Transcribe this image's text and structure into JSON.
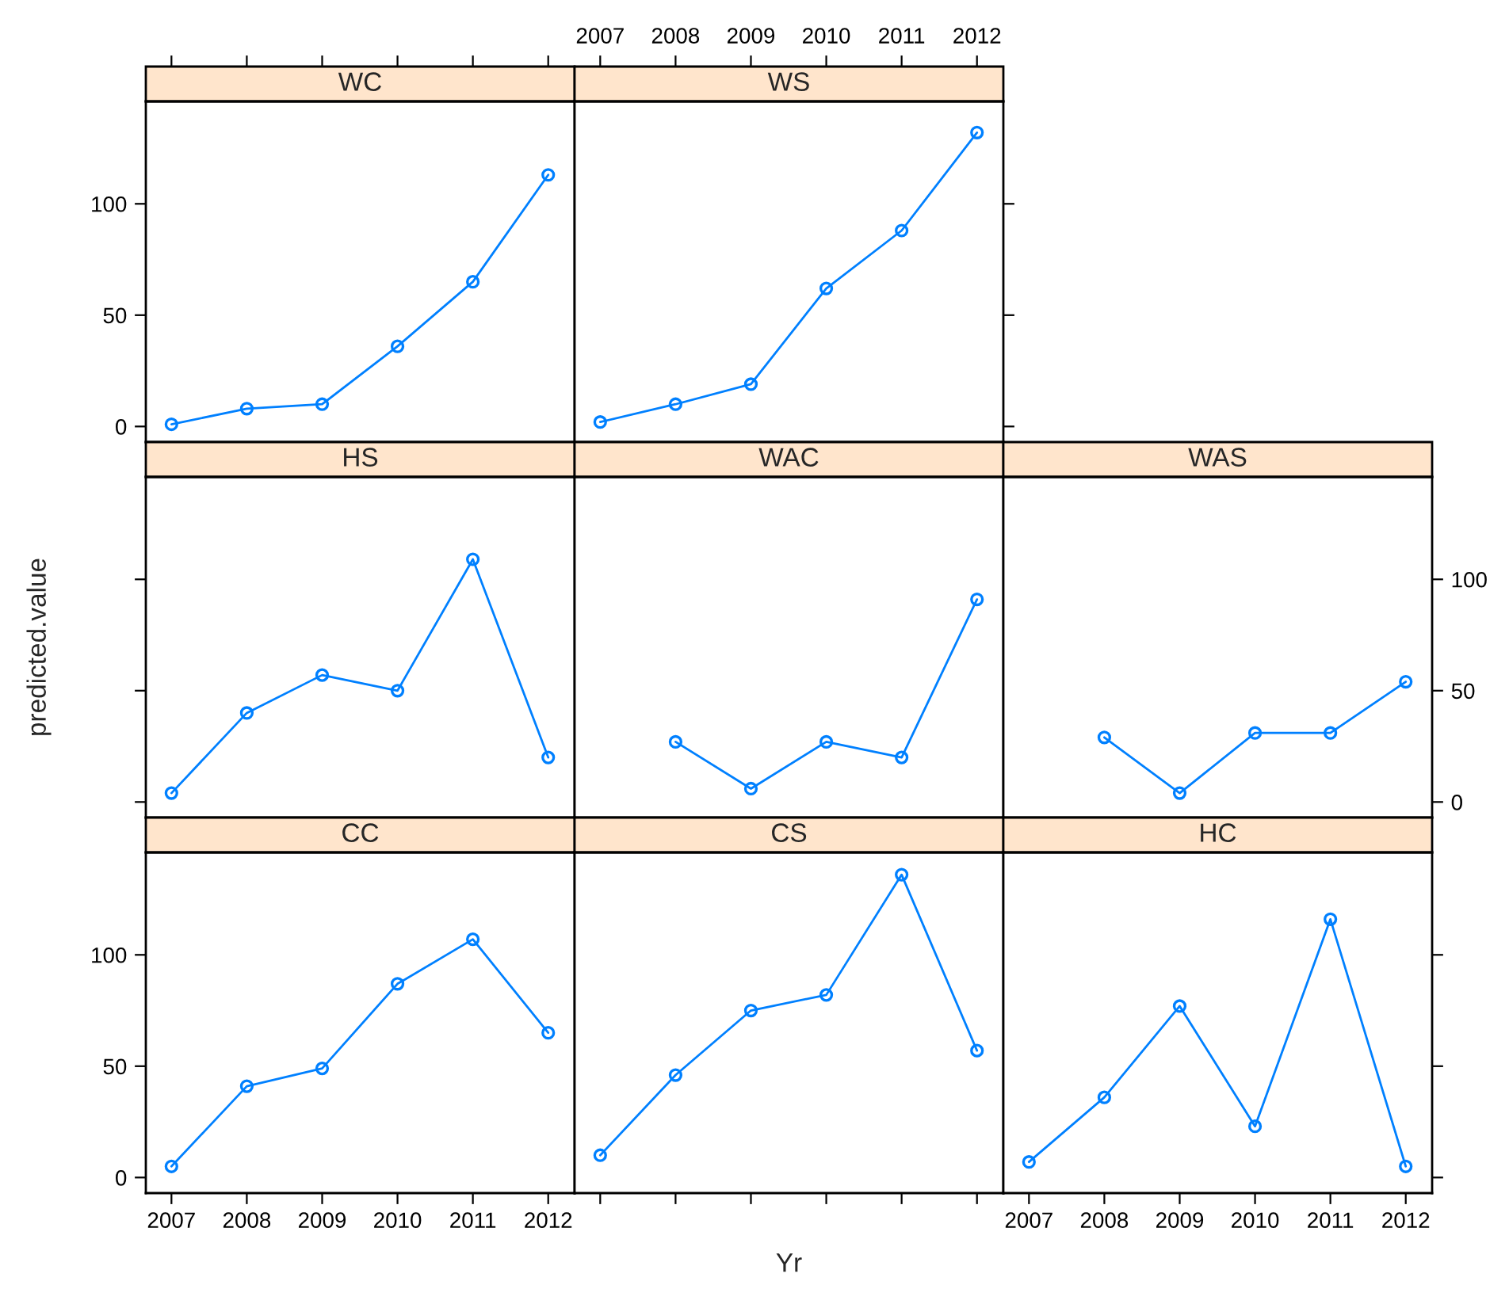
{
  "chart_data": [
    {
      "type": "line",
      "title": "WC",
      "x": [
        2007,
        2008,
        2009,
        2010,
        2011,
        2012
      ],
      "series": [
        {
          "color": "#0080ff",
          "values": [
            1,
            8,
            10,
            36,
            65,
            113
          ]
        }
      ],
      "xlim": [
        2006.66,
        2012.35
      ],
      "xticks": [
        2007,
        2008,
        2009,
        2010,
        2011,
        2012
      ],
      "ylim": [
        -7,
        146
      ],
      "yticks": [
        0,
        50,
        100
      ],
      "marker": "circle",
      "grid": false,
      "tick_labels": "y"
    },
    {
      "type": "line",
      "title": "WS",
      "x": [
        2007,
        2008,
        2009,
        2010,
        2011,
        2012
      ],
      "series": [
        {
          "color": "#0080ff",
          "values": [
            2,
            10,
            19,
            62,
            88,
            132
          ]
        }
      ],
      "xlim": [
        2006.66,
        2012.35
      ],
      "xticks": [
        2007,
        2008,
        2009,
        2010,
        2011,
        2012
      ],
      "ylim": [
        -7,
        146
      ],
      "yticks": [
        0,
        50,
        100
      ],
      "marker": "circle",
      "grid": false,
      "tick_labels": "x"
    },
    {
      "type": "line",
      "title": "HS",
      "ylabel": "predicted.value",
      "x": [
        2007,
        2008,
        2009,
        2010,
        2011,
        2012
      ],
      "series": [
        {
          "color": "#0080ff",
          "values": [
            4,
            40,
            57,
            50,
            109,
            20
          ]
        }
      ],
      "xlim": [
        2006.66,
        2012.35
      ],
      "xticks": [
        2007,
        2008,
        2009,
        2010,
        2011,
        2012
      ],
      "ylim": [
        -7,
        146
      ],
      "yticks": [
        0,
        50,
        100
      ],
      "marker": "circle",
      "grid": false,
      "tick_labels": false
    },
    {
      "type": "line",
      "title": "WAC",
      "series": [
        {
          "color": "#0080ff",
          "x": [
            2008,
            2009,
            2010,
            2011,
            2012
          ],
          "values": [
            27,
            6,
            27,
            20,
            91
          ]
        }
      ],
      "xlim": [
        2006.66,
        2012.35
      ],
      "xticks": [
        2007,
        2008,
        2009,
        2010,
        2011,
        2012
      ],
      "ylim": [
        -7,
        146
      ],
      "yticks": [
        0,
        50,
        100
      ],
      "marker": "circle",
      "grid": false,
      "tick_labels": false
    },
    {
      "type": "line",
      "title": "WAS",
      "series": [
        {
          "color": "#0080ff",
          "x": [
            2008,
            2009,
            2010,
            2011,
            2012
          ],
          "values": [
            29,
            4,
            31,
            31,
            54
          ]
        }
      ],
      "xlim": [
        2006.66,
        2012.35
      ],
      "xticks": [
        2007,
        2008,
        2009,
        2010,
        2011,
        2012
      ],
      "ylim": [
        -7,
        146
      ],
      "yticks": [
        0,
        50,
        100
      ],
      "marker": "circle",
      "grid": false,
      "tick_labels": "y"
    },
    {
      "type": "line",
      "title": "CC",
      "x": [
        2007,
        2008,
        2009,
        2010,
        2011,
        2012
      ],
      "series": [
        {
          "color": "#0080ff",
          "values": [
            5,
            41,
            49,
            87,
            107,
            65
          ]
        }
      ],
      "xlim": [
        2006.66,
        2012.35
      ],
      "xticks": [
        2007,
        2008,
        2009,
        2010,
        2011,
        2012
      ],
      "ylim": [
        -7,
        146
      ],
      "yticks": [
        0,
        50,
        100
      ],
      "marker": "circle",
      "grid": false
    },
    {
      "type": "line",
      "title": "CS",
      "xlabel": "Yr",
      "x": [
        2007,
        2008,
        2009,
        2010,
        2011,
        2012
      ],
      "series": [
        {
          "color": "#0080ff",
          "values": [
            10,
            46,
            75,
            82,
            136,
            57
          ]
        }
      ],
      "xlim": [
        2006.66,
        2012.35
      ],
      "xticks": [
        2007,
        2008,
        2009,
        2010,
        2011,
        2012
      ],
      "ylim": [
        -7,
        146
      ],
      "yticks": [
        0,
        50,
        100
      ],
      "marker": "circle",
      "grid": false,
      "tick_labels": false
    },
    {
      "type": "line",
      "title": "HC",
      "x": [
        2007,
        2008,
        2009,
        2010,
        2011,
        2012
      ],
      "series": [
        {
          "color": "#0080ff",
          "values": [
            7,
            36,
            77,
            23,
            116,
            5
          ]
        }
      ],
      "xlim": [
        2006.66,
        2012.35
      ],
      "xticks": [
        2007,
        2008,
        2009,
        2010,
        2011,
        2012
      ],
      "ylim": [
        -7,
        146
      ],
      "yticks": [
        0,
        50,
        100
      ],
      "marker": "circle",
      "grid": false,
      "tick_labels": "x"
    }
  ]
}
